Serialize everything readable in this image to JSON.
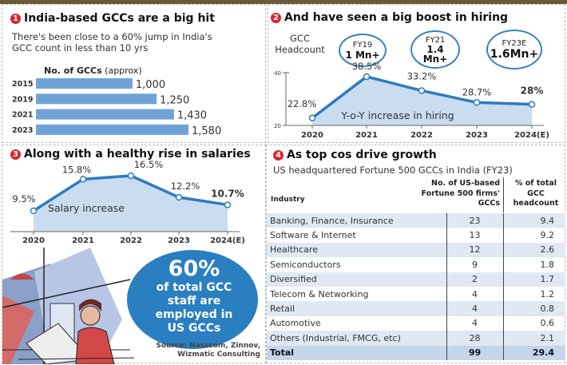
{
  "panel1": {
    "number": "1",
    "title": "India-based GCCs are a big hit",
    "subtitle": "There's been close to a 60% jump in India's GCC count in less than 10 yrs",
    "chart_label_bold": "No. of GCCs",
    "chart_label_note": "(approx)"
  },
  "panel2": {
    "number": "2",
    "title": "And have seen a big boost in hiring",
    "headcount_label": "GCC Headcount",
    "headcount": [
      {
        "year": "FY19",
        "value": "1 Mn+"
      },
      {
        "year": "FY21",
        "value": "1.4 Mn+"
      },
      {
        "year": "FY23E",
        "value": "1.6Mn+"
      }
    ]
  },
  "panel3": {
    "number": "3",
    "title": "Along with a healthy rise in salaries",
    "callout_big": "60%",
    "callout_text": "of total GCC staff are employed in US GCCs",
    "source": "Source: Nasscom, Zinnov, Wizmatic Consulting"
  },
  "panel4": {
    "number": "4",
    "title": "As top cos drive growth",
    "subtitle": "US headquartered Fortune 500 GCCs in India (FY23)"
  },
  "colors": {
    "bar": "#6fa3d8",
    "line": "#2f7bbf",
    "area": "#c9dcf0",
    "badge": "#d7262b",
    "callout": "#2a7fc1"
  },
  "chart_data": [
    {
      "type": "bar",
      "orientation": "horizontal",
      "title": "No. of GCCs (approx)",
      "categories": [
        "2015",
        "2019",
        "2021",
        "2023"
      ],
      "values": [
        1000,
        1250,
        1430,
        1580
      ],
      "value_labels": [
        "1,000",
        "1,250",
        "1,430",
        "1,580"
      ]
    },
    {
      "type": "area",
      "title": "Y-o-Y increase in hiring",
      "categories": [
        "2020",
        "2021",
        "2022",
        "2023",
        "2024(E)"
      ],
      "values": [
        22.8,
        38.5,
        33.2,
        28.7,
        28
      ],
      "value_labels": [
        "22.8%",
        "38.5%",
        "33.2%",
        "28.7%",
        "28%"
      ],
      "yticks": [
        "40",
        "20"
      ],
      "ylim": [
        20,
        40
      ]
    },
    {
      "type": "area",
      "title": "Salary increase",
      "categories": [
        "2020",
        "2021",
        "2022",
        "2023",
        "2024(E)"
      ],
      "values": [
        9.5,
        15.8,
        16.5,
        12.2,
        10.7
      ],
      "value_labels": [
        "9.5%",
        "15.8%",
        "16.5%",
        "12.2%",
        "10.7%"
      ]
    },
    {
      "type": "table",
      "columns": [
        "Industry",
        "No. of US-based Fortune 500 firms' GCCs",
        "% of total GCC headcount"
      ],
      "rows": [
        [
          "Banking, Finance, Insurance",
          "23",
          "9.4"
        ],
        [
          "Software & Internet",
          "13",
          "9.2"
        ],
        [
          "Healthcare",
          "12",
          "2.6"
        ],
        [
          "Semiconductors",
          "9",
          "1.8"
        ],
        [
          "Diversified",
          "2",
          "1.7"
        ],
        [
          "Telecom & Networking",
          "4",
          "1.2"
        ],
        [
          "Retail",
          "4",
          "0.8"
        ],
        [
          "Automotive",
          "4",
          "0.6"
        ],
        [
          "Others (Industrial, FMCG, etc)",
          "28",
          "2.1"
        ],
        [
          "Total",
          "99",
          "29.4"
        ]
      ]
    }
  ]
}
